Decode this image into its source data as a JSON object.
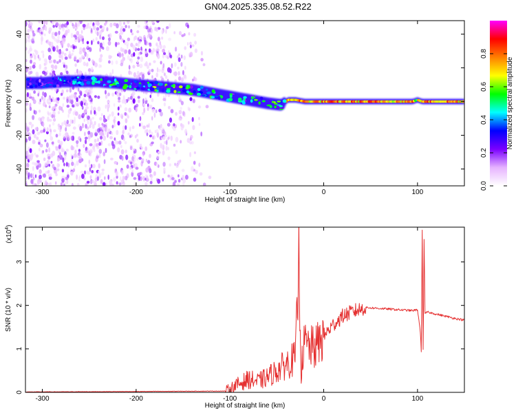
{
  "title": "GN04.2025.335.08.52.R22",
  "chart_data": [
    {
      "type": "heatmap",
      "xlabel": "Height of straight line (km)",
      "ylabel": "Frequency (Hz)",
      "xlim": [
        -318,
        150
      ],
      "ylim": [
        -50,
        48
      ],
      "xticks": [
        -300,
        -200,
        -100,
        0,
        100
      ],
      "yticks": [
        -40,
        -20,
        0,
        20,
        40
      ],
      "colorbar": {
        "label": "Normalized spectral amplitude",
        "range": [
          0,
          1
        ],
        "ticks": [
          "0.0",
          "0.2",
          "0.4",
          "0.6",
          "0.8"
        ],
        "colors": [
          "#ffffff",
          "#e6b3ff",
          "#7a00ff",
          "#0000ff",
          "#00ffff",
          "#00ff00",
          "#ffff00",
          "#ff8000",
          "#ff0000",
          "#ff00ff"
        ]
      },
      "ridge": {
        "x": [
          -318,
          -300,
          -280,
          -260,
          -240,
          -220,
          -200,
          -180,
          -160,
          -140,
          -120,
          -100,
          -80,
          -60,
          -45,
          -38,
          -30,
          -20,
          -10,
          0,
          20,
          50,
          80,
          95,
          100,
          105,
          120,
          150
        ],
        "y": [
          11,
          11,
          12,
          12,
          12,
          11,
          10,
          9,
          8,
          7,
          5,
          3,
          1,
          -1,
          -2,
          1,
          1,
          0,
          0,
          0,
          0,
          0,
          0,
          0,
          1,
          0,
          0,
          0
        ],
        "amplitude": [
          0.3,
          0.35,
          0.4,
          0.45,
          0.5,
          0.5,
          0.5,
          0.55,
          0.55,
          0.5,
          0.5,
          0.5,
          0.5,
          0.55,
          0.6,
          0.8,
          0.85,
          0.85,
          0.85,
          0.85,
          0.85,
          0.85,
          0.85,
          0.85,
          0.7,
          0.85,
          0.85,
          0.85
        ]
      }
    },
    {
      "type": "line",
      "xlabel": "Height of straight line (km)",
      "ylabel": "SNR (10 * v/v)",
      "scale_label": "(x10",
      "scale_exp": "4",
      "scale_close": ")",
      "xlim": [
        -318,
        150
      ],
      "ylim": [
        0,
        3.8
      ],
      "xticks": [
        -300,
        -200,
        -100,
        0,
        100
      ],
      "yticks": [
        0,
        1,
        2,
        3
      ],
      "color": "#e53030",
      "x": [
        -318,
        -200,
        -105,
        -100,
        -90,
        -80,
        -70,
        -60,
        -50,
        -40,
        -30,
        -28,
        -26,
        -24,
        -22,
        -20,
        -10,
        0,
        10,
        20,
        30,
        40,
        45,
        60,
        80,
        95,
        100,
        103,
        104,
        105,
        106,
        107,
        108,
        110,
        120,
        130,
        140,
        150
      ],
      "y": [
        0.01,
        0.02,
        0.03,
        0.08,
        0.2,
        0.3,
        0.25,
        0.35,
        0.5,
        0.65,
        0.8,
        2.1,
        3.15,
        0.4,
        1.0,
        1.1,
        1.0,
        1.3,
        1.55,
        1.75,
        1.85,
        1.92,
        1.95,
        1.93,
        1.9,
        1.88,
        1.9,
        1.4,
        0.95,
        3.75,
        1.0,
        3.5,
        1.8,
        1.85,
        1.8,
        1.75,
        1.7,
        1.66
      ]
    }
  ]
}
